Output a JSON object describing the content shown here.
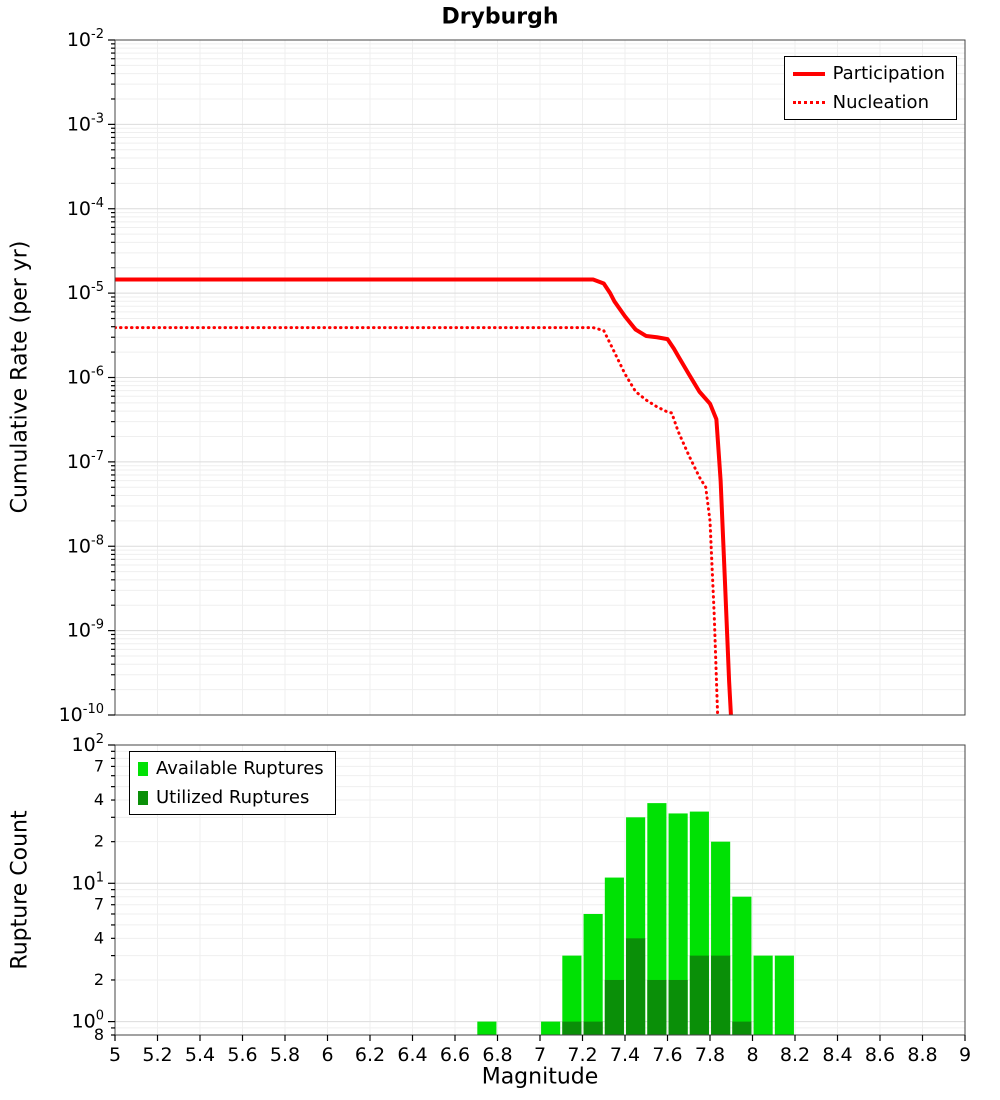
{
  "title": "Dryburgh",
  "style": {
    "background": "#ffffff",
    "grid_major": "#dcdcdc",
    "grid_minor": "#efefef",
    "plot_border": "#444444",
    "tick_color": "#000000"
  },
  "chart_data": [
    {
      "type": "line",
      "title": "Dryburgh",
      "xlabel": "Magnitude",
      "ylabel": "Cumulative Rate (per yr)",
      "xlim": [
        5,
        9
      ],
      "x_tick_step": 0.2,
      "y_scale": "log",
      "ylim_exp": [
        -10,
        -2
      ],
      "y_major_tick_exponents": [
        -2,
        -3,
        -4,
        -5,
        -6,
        -7,
        -8,
        -9,
        -10
      ],
      "legend_position": "top-right",
      "series": [
        {
          "name": "Participation",
          "color": "#ff0000",
          "style": "solid",
          "width": 4,
          "points": [
            [
              5.0,
              1.45e-05
            ],
            [
              7.25,
              1.45e-05
            ],
            [
              7.3,
              1.3e-05
            ],
            [
              7.33,
              1e-05
            ],
            [
              7.35,
              8e-06
            ],
            [
              7.4,
              5.3e-06
            ],
            [
              7.45,
              3.7e-06
            ],
            [
              7.5,
              3.1e-06
            ],
            [
              7.55,
              3e-06
            ],
            [
              7.6,
              2.85e-06
            ],
            [
              7.63,
              2.2e-06
            ],
            [
              7.65,
              1.8e-06
            ],
            [
              7.7,
              1.1e-06
            ],
            [
              7.75,
              6.8e-07
            ],
            [
              7.8,
              4.9e-07
            ],
            [
              7.83,
              3.2e-07
            ],
            [
              7.85,
              6e-08
            ],
            [
              7.87,
              4e-09
            ],
            [
              7.89,
              2.5e-10
            ],
            [
              7.905,
              5e-11
            ]
          ]
        },
        {
          "name": "Nucleation",
          "color": "#ff0000",
          "style": "dotted",
          "width": 3,
          "points": [
            [
              5.0,
              3.9e-06
            ],
            [
              7.25,
              3.9e-06
            ],
            [
              7.3,
              3.6e-06
            ],
            [
              7.35,
              2e-06
            ],
            [
              7.4,
              1.1e-06
            ],
            [
              7.45,
              6.8e-07
            ],
            [
              7.5,
              5.4e-07
            ],
            [
              7.55,
              4.5e-07
            ],
            [
              7.6,
              3.9e-07
            ],
            [
              7.62,
              3.8e-07
            ],
            [
              7.65,
              2.3e-07
            ],
            [
              7.7,
              1.2e-07
            ],
            [
              7.75,
              6.6e-08
            ],
            [
              7.78,
              5e-08
            ],
            [
              7.8,
              2e-08
            ],
            [
              7.82,
              1.5e-09
            ],
            [
              7.84,
              5e-11
            ]
          ]
        }
      ]
    },
    {
      "type": "bar",
      "title": "",
      "xlabel": "Magnitude",
      "ylabel": "Rupture Count",
      "xlim": [
        5,
        9
      ],
      "x_tick_step": 0.2,
      "x_tick_labels": [
        "5",
        "5.2",
        "5.4",
        "5.6",
        "5.8",
        "6",
        "6.2",
        "6.4",
        "6.6",
        "6.8",
        "7",
        "7.2",
        "7.4",
        "7.6",
        "7.8",
        "8",
        "8.2",
        "8.4",
        "8.6",
        "8.8",
        "9"
      ],
      "y_scale": "log",
      "ylim": [
        0.8,
        100
      ],
      "y_tick_labels": [
        {
          "value": 100,
          "type": "major",
          "exp": "2"
        },
        {
          "value": 70,
          "type": "minor",
          "text": "7"
        },
        {
          "value": 40,
          "type": "minor",
          "text": "4"
        },
        {
          "value": 20,
          "type": "minor",
          "text": "2"
        },
        {
          "value": 10,
          "type": "major",
          "exp": "1"
        },
        {
          "value": 7,
          "type": "minor",
          "text": "7"
        },
        {
          "value": 4,
          "type": "minor",
          "text": "4"
        },
        {
          "value": 2,
          "type": "minor",
          "text": "2"
        },
        {
          "value": 1,
          "type": "major",
          "exp": "0"
        },
        {
          "value": 0.8,
          "type": "minor",
          "text": "8"
        }
      ],
      "bar_width": 0.09,
      "legend_position": "top-left",
      "series": [
        {
          "name": "Available Ruptures",
          "color": "#00e104",
          "centers": [
            6.75,
            7.05,
            7.15,
            7.25,
            7.35,
            7.45,
            7.55,
            7.65,
            7.75,
            7.85,
            7.95,
            8.05,
            8.15
          ],
          "values": [
            1,
            1,
            3,
            6,
            11,
            30,
            38,
            32,
            33,
            20,
            8,
            3,
            3
          ]
        },
        {
          "name": "Utilized Ruptures",
          "color": "#0a8f08",
          "centers": [
            7.15,
            7.25,
            7.35,
            7.45,
            7.55,
            7.65,
            7.75,
            7.85,
            7.95
          ],
          "values": [
            1,
            1,
            2,
            4,
            2,
            2,
            3,
            3,
            1
          ]
        }
      ]
    }
  ]
}
